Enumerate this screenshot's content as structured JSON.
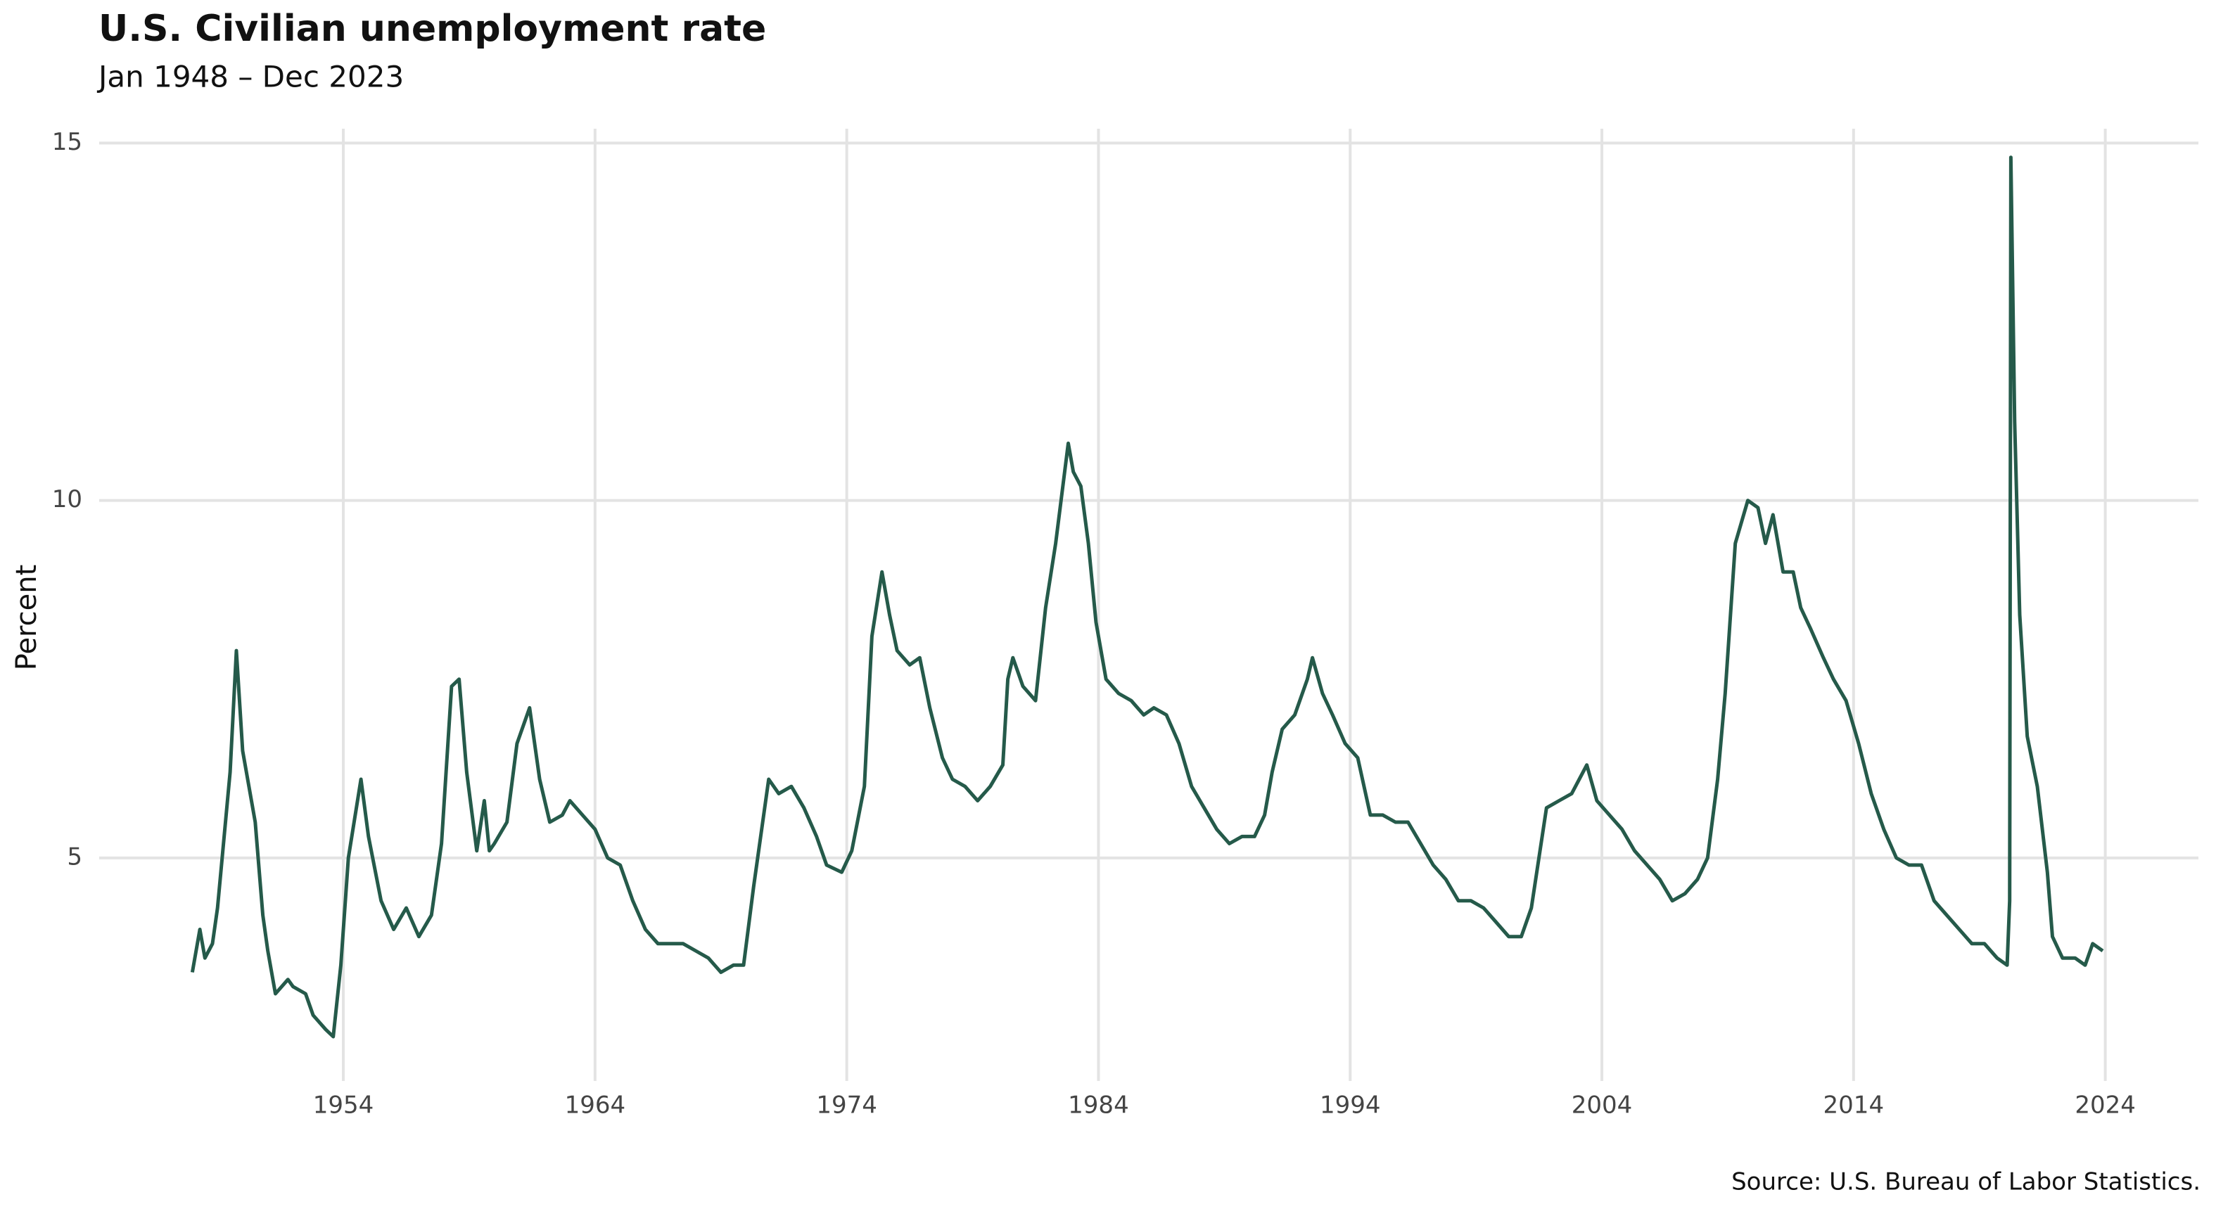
{
  "chart_data": {
    "type": "line",
    "title": "U.S. Civilian unemployment rate",
    "subtitle": "Jan 1948 – Dec 2023",
    "ylabel": "Percent",
    "source": "Source: U.S. Bureau of Labor Statistics.",
    "color": "#255a4a",
    "grid": true,
    "xlim": [
      1944.3,
      2027.7
    ],
    "ylim": [
      1.88,
      15.2
    ],
    "xticks": [
      1954,
      1964,
      1974,
      1984,
      1994,
      2004,
      2014,
      2024
    ],
    "yticks": [
      5,
      10,
      15
    ],
    "x": [
      1948.0,
      1948.3,
      1948.5,
      1948.8,
      1949.0,
      1949.5,
      1949.75,
      1950.0,
      1950.5,
      1950.8,
      1951.0,
      1951.3,
      1951.8,
      1952.0,
      1952.5,
      1952.8,
      1953.3,
      1953.6,
      1953.9,
      1954.2,
      1954.7,
      1955.0,
      1955.5,
      1956.0,
      1956.5,
      1957.0,
      1957.5,
      1957.9,
      1958.3,
      1958.6,
      1958.9,
      1959.3,
      1959.6,
      1959.8,
      1960.0,
      1960.5,
      1960.9,
      1961.4,
      1961.8,
      1962.2,
      1962.7,
      1963.0,
      1963.5,
      1964.0,
      1964.5,
      1965.0,
      1965.5,
      1966.0,
      1966.5,
      1967.0,
      1967.5,
      1968.0,
      1968.5,
      1969.0,
      1969.5,
      1969.9,
      1970.3,
      1970.9,
      1971.3,
      1971.8,
      1972.3,
      1972.8,
      1973.2,
      1973.8,
      1974.2,
      1974.7,
      1975.0,
      1975.4,
      1975.7,
      1976.0,
      1976.5,
      1976.9,
      1977.3,
      1977.8,
      1978.2,
      1978.7,
      1979.2,
      1979.7,
      1980.2,
      1980.4,
      1980.6,
      1981.0,
      1981.5,
      1981.9,
      1982.3,
      1982.8,
      1983.0,
      1983.3,
      1983.6,
      1983.9,
      1984.3,
      1984.8,
      1985.3,
      1985.8,
      1986.2,
      1986.7,
      1987.2,
      1987.7,
      1988.2,
      1988.7,
      1989.2,
      1989.7,
      1990.2,
      1990.6,
      1990.9,
      1991.3,
      1991.8,
      1992.3,
      1992.5,
      1992.9,
      1993.3,
      1993.8,
      1994.3,
      1994.8,
      1995.3,
      1995.8,
      1996.3,
      1996.8,
      1997.3,
      1997.8,
      1998.3,
      1998.8,
      1999.3,
      1999.8,
      2000.3,
      2000.8,
      2001.2,
      2001.8,
      2002.3,
      2002.8,
      2003.4,
      2003.8,
      2004.3,
      2004.8,
      2005.3,
      2005.8,
      2006.3,
      2006.8,
      2007.3,
      2007.8,
      2008.2,
      2008.6,
      2008.9,
      2009.3,
      2009.8,
      2010.2,
      2010.5,
      2010.8,
      2011.2,
      2011.6,
      2011.9,
      2012.3,
      2012.8,
      2013.2,
      2013.7,
      2014.2,
      2014.7,
      2015.2,
      2015.7,
      2016.2,
      2016.7,
      2017.2,
      2017.7,
      2018.2,
      2018.7,
      2019.2,
      2019.7,
      2020.1,
      2020.2,
      2020.25,
      2020.4,
      2020.6,
      2020.9,
      2021.3,
      2021.7,
      2021.9,
      2022.3,
      2022.8,
      2023.2,
      2023.5,
      2023.9
    ],
    "values": [
      3.4,
      4.0,
      3.6,
      3.8,
      4.3,
      6.2,
      7.9,
      6.5,
      5.5,
      4.2,
      3.7,
      3.1,
      3.3,
      3.2,
      3.1,
      2.8,
      2.6,
      2.5,
      3.5,
      5.0,
      6.1,
      5.3,
      4.4,
      4.0,
      4.3,
      3.9,
      4.2,
      5.2,
      7.4,
      7.5,
      6.2,
      5.1,
      5.8,
      5.1,
      5.2,
      5.5,
      6.6,
      7.1,
      6.1,
      5.5,
      5.6,
      5.8,
      5.6,
      5.4,
      5.0,
      4.9,
      4.4,
      4.0,
      3.8,
      3.8,
      3.8,
      3.7,
      3.6,
      3.4,
      3.5,
      3.5,
      4.6,
      6.1,
      5.9,
      6.0,
      5.7,
      5.3,
      4.9,
      4.8,
      5.1,
      6.0,
      8.1,
      9.0,
      8.4,
      7.9,
      7.7,
      7.8,
      7.1,
      6.4,
      6.1,
      6.0,
      5.8,
      6.0,
      6.3,
      7.5,
      7.8,
      7.4,
      7.2,
      8.5,
      9.4,
      10.8,
      10.4,
      10.2,
      9.4,
      8.3,
      7.5,
      7.3,
      7.2,
      7.0,
      7.1,
      7.0,
      6.6,
      6.0,
      5.7,
      5.4,
      5.2,
      5.3,
      5.3,
      5.6,
      6.2,
      6.8,
      7.0,
      7.5,
      7.8,
      7.3,
      7.0,
      6.6,
      6.4,
      5.6,
      5.6,
      5.5,
      5.5,
      5.2,
      4.9,
      4.7,
      4.4,
      4.4,
      4.3,
      4.1,
      3.9,
      3.9,
      4.3,
      5.7,
      5.8,
      5.9,
      6.3,
      5.8,
      5.6,
      5.4,
      5.1,
      4.9,
      4.7,
      4.4,
      4.5,
      4.7,
      5.0,
      6.1,
      7.3,
      9.4,
      10.0,
      9.9,
      9.4,
      9.8,
      9.0,
      9.0,
      8.5,
      8.2,
      7.8,
      7.5,
      7.2,
      6.6,
      5.9,
      5.4,
      5.0,
      4.9,
      4.9,
      4.4,
      4.2,
      4.0,
      3.8,
      3.8,
      3.6,
      3.5,
      4.4,
      14.8,
      11.1,
      8.4,
      6.7,
      6.0,
      4.8,
      3.9,
      3.6,
      3.6,
      3.5,
      3.8,
      3.7
    ]
  }
}
